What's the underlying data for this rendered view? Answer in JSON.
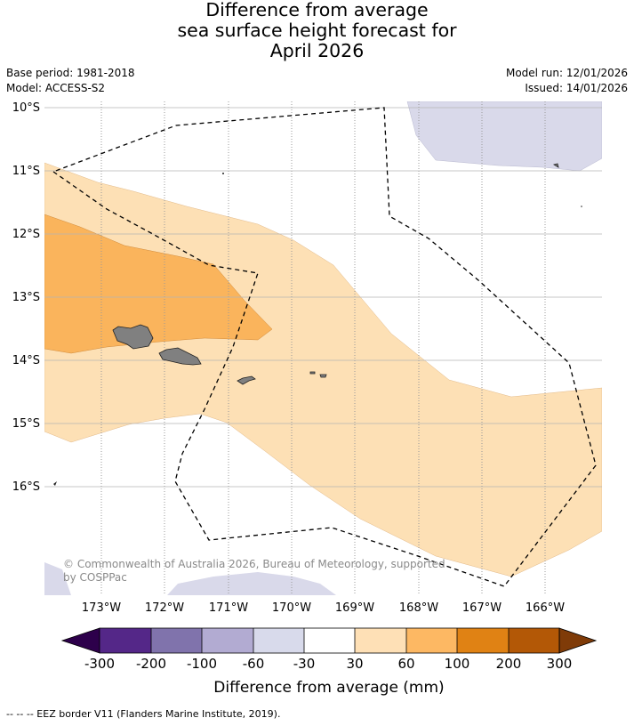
{
  "title": {
    "line1": "Difference from average",
    "line2": "sea surface height forecast for",
    "line3": "April 2026"
  },
  "meta": {
    "base_period": "Base period: 1981-2018",
    "model": "Model: ACCESS-S2",
    "model_run": "Model run: 12/01/2026",
    "issued": "Issued: 14/01/2026"
  },
  "map": {
    "lat_labels": [
      "10°S",
      "11°S",
      "12°S",
      "13°S",
      "14°S",
      "15°S",
      "16°S"
    ],
    "lon_labels": [
      "173°W",
      "172°W",
      "171°W",
      "170°W",
      "169°W",
      "168°W",
      "167°W",
      "166°W"
    ],
    "copyright_line1": "© Commonwealth of Australia 2026, Bureau of Meteorology, supported",
    "copyright_line2": "by COSPPac",
    "colors": {
      "band_neg60_neg30": "#d9d9ea",
      "band_30_60": "#fde0b5",
      "band_60_100": "#fab45c",
      "land": "#808080",
      "gridline": "#888888"
    }
  },
  "colorbar": {
    "tick_labels": [
      "-300",
      "-200",
      "-100",
      "-60",
      "-30",
      "30",
      "60",
      "100",
      "200",
      "300"
    ],
    "label": "Difference from average (mm)",
    "colors": [
      "#2d004b",
      "#542788",
      "#8073ac",
      "#b2abd2",
      "#d8daeb",
      "#ffffff",
      "#fee0b6",
      "#fdb863",
      "#e08214",
      "#b35806",
      "#7f3b08"
    ]
  },
  "footer": {
    "legend": "--  --  -- EEZ border V11 (Flanders Marine Institute, 2019)."
  }
}
